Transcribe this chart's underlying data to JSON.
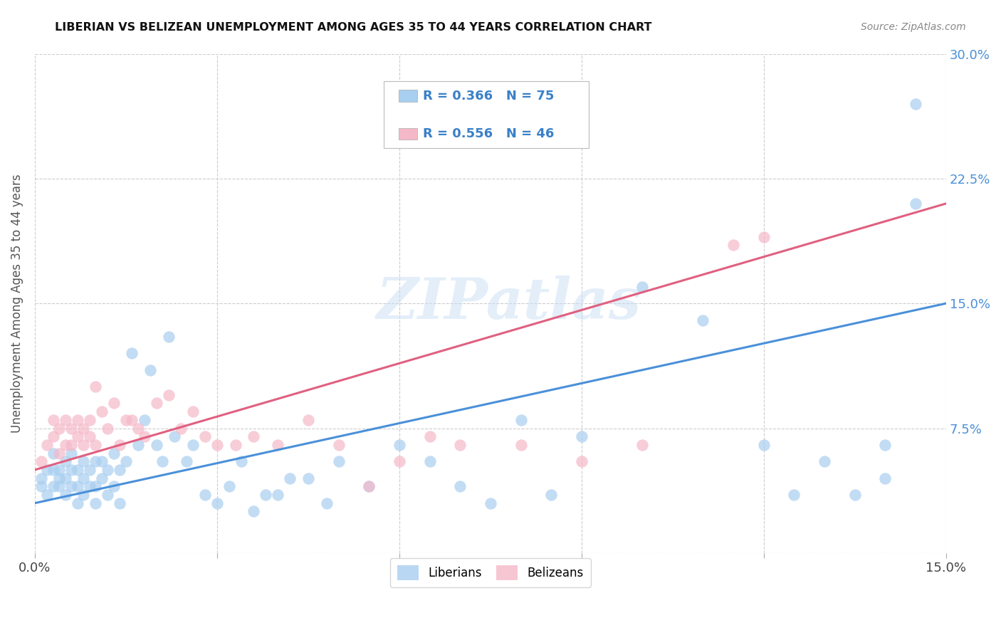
{
  "title": "LIBERIAN VS BELIZEAN UNEMPLOYMENT AMONG AGES 35 TO 44 YEARS CORRELATION CHART",
  "source": "Source: ZipAtlas.com",
  "ylabel": "Unemployment Among Ages 35 to 44 years",
  "xlim": [
    0.0,
    0.15
  ],
  "ylim": [
    0.0,
    0.3
  ],
  "xtick_positions": [
    0.0,
    0.03,
    0.06,
    0.09,
    0.12,
    0.15
  ],
  "ytick_positions": [
    0.0,
    0.075,
    0.15,
    0.225,
    0.3
  ],
  "liberian_color": "#A8CEF0",
  "belizean_color": "#F5B8C8",
  "liberian_line_color": "#4A90D9",
  "belizean_line_color": "#E06080",
  "liberian_R": 0.366,
  "liberian_N": 75,
  "belizean_R": 0.556,
  "belizean_N": 46,
  "watermark": "ZIPatlas",
  "lib_line_x0": 0.0,
  "lib_line_y0": 0.03,
  "lib_line_x1": 0.15,
  "lib_line_y1": 0.15,
  "bel_line_x0": 0.0,
  "bel_line_y0": 0.05,
  "bel_line_x1": 0.15,
  "bel_line_y1": 0.21,
  "liberian_x": [
    0.001,
    0.001,
    0.002,
    0.002,
    0.003,
    0.003,
    0.003,
    0.004,
    0.004,
    0.004,
    0.005,
    0.005,
    0.005,
    0.006,
    0.006,
    0.006,
    0.007,
    0.007,
    0.007,
    0.008,
    0.008,
    0.008,
    0.009,
    0.009,
    0.01,
    0.01,
    0.01,
    0.011,
    0.011,
    0.012,
    0.012,
    0.013,
    0.013,
    0.014,
    0.014,
    0.015,
    0.016,
    0.017,
    0.018,
    0.019,
    0.02,
    0.021,
    0.022,
    0.023,
    0.025,
    0.026,
    0.028,
    0.03,
    0.032,
    0.034,
    0.036,
    0.038,
    0.04,
    0.042,
    0.045,
    0.048,
    0.05,
    0.055,
    0.06,
    0.065,
    0.07,
    0.075,
    0.08,
    0.085,
    0.09,
    0.1,
    0.11,
    0.12,
    0.125,
    0.13,
    0.135,
    0.14,
    0.14,
    0.145,
    0.145
  ],
  "liberian_y": [
    0.04,
    0.045,
    0.05,
    0.035,
    0.04,
    0.05,
    0.06,
    0.04,
    0.045,
    0.05,
    0.035,
    0.045,
    0.055,
    0.04,
    0.05,
    0.06,
    0.03,
    0.04,
    0.05,
    0.035,
    0.045,
    0.055,
    0.04,
    0.05,
    0.03,
    0.04,
    0.055,
    0.045,
    0.055,
    0.035,
    0.05,
    0.04,
    0.06,
    0.03,
    0.05,
    0.055,
    0.12,
    0.065,
    0.08,
    0.11,
    0.065,
    0.055,
    0.13,
    0.07,
    0.055,
    0.065,
    0.035,
    0.03,
    0.04,
    0.055,
    0.025,
    0.035,
    0.035,
    0.045,
    0.045,
    0.03,
    0.055,
    0.04,
    0.065,
    0.055,
    0.04,
    0.03,
    0.08,
    0.035,
    0.07,
    0.16,
    0.14,
    0.065,
    0.035,
    0.055,
    0.035,
    0.065,
    0.045,
    0.27,
    0.21
  ],
  "belizean_x": [
    0.001,
    0.002,
    0.003,
    0.003,
    0.004,
    0.004,
    0.005,
    0.005,
    0.006,
    0.006,
    0.007,
    0.007,
    0.008,
    0.008,
    0.009,
    0.009,
    0.01,
    0.01,
    0.011,
    0.012,
    0.013,
    0.014,
    0.015,
    0.016,
    0.017,
    0.018,
    0.02,
    0.022,
    0.024,
    0.026,
    0.028,
    0.03,
    0.033,
    0.036,
    0.04,
    0.045,
    0.05,
    0.055,
    0.06,
    0.065,
    0.07,
    0.08,
    0.09,
    0.1,
    0.115,
    0.12
  ],
  "belizean_y": [
    0.055,
    0.065,
    0.07,
    0.08,
    0.06,
    0.075,
    0.065,
    0.08,
    0.065,
    0.075,
    0.07,
    0.08,
    0.065,
    0.075,
    0.07,
    0.08,
    0.065,
    0.1,
    0.085,
    0.075,
    0.09,
    0.065,
    0.08,
    0.08,
    0.075,
    0.07,
    0.09,
    0.095,
    0.075,
    0.085,
    0.07,
    0.065,
    0.065,
    0.07,
    0.065,
    0.08,
    0.065,
    0.04,
    0.055,
    0.07,
    0.065,
    0.065,
    0.055,
    0.065,
    0.185,
    0.19
  ]
}
